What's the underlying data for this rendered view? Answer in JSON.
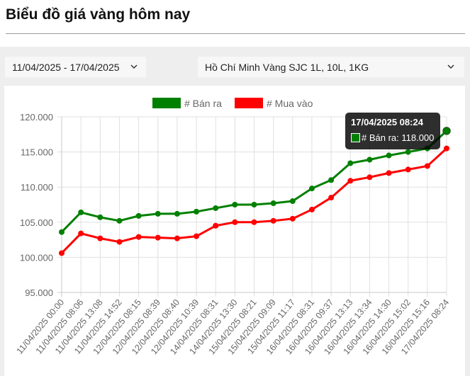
{
  "page": {
    "title": "Biểu đồ giá vàng hôm nay"
  },
  "filters": {
    "date_range": "11/04/2025 - 17/04/2025",
    "location": "Hồ Chí Minh Vàng SJC 1L, 10L, 1KG"
  },
  "icons": {
    "date_dropdown": "chevron-down-icon",
    "location_dropdown": "chevron-down-icon"
  },
  "tooltip": {
    "title": "17/04/2025 08:24",
    "series_label": "# Bán ra",
    "value_text": "118.000",
    "line": "# Bán ra: 118.000"
  },
  "chart_data": {
    "type": "line",
    "title": "",
    "xlabel": "",
    "ylabel": "",
    "ylim": [
      95000,
      120000
    ],
    "y_ticks": [
      95000,
      100000,
      105000,
      110000,
      115000,
      120000
    ],
    "y_tick_labels": [
      "95.000",
      "100.000",
      "105.000",
      "110.000",
      "115.000",
      "120.000"
    ],
    "grid": true,
    "legend_position": "top",
    "categories": [
      "11/04/2025 00:00",
      "11/04/2025 08:06",
      "11/04/2025 13:08",
      "11/04/2025 14:52",
      "12/04/2025 08:15",
      "12/04/2025 08:39",
      "12/04/2025 08:40",
      "12/04/2025 10:39",
      "14/04/2025 08:31",
      "14/04/2025 13:30",
      "15/04/2025 08:21",
      "15/04/2025 09:09",
      "15/04/2025 11:17",
      "16/04/2025 08:31",
      "16/04/2025 09:37",
      "16/04/2025 13:13",
      "16/04/2025 13:34",
      "16/04/2025 14:30",
      "16/04/2025 15:02",
      "16/04/2025 15:16",
      "17/04/2025 08:24"
    ],
    "series": [
      {
        "name": "# Bán ra",
        "color": "#008000",
        "values": [
          103600,
          106400,
          105700,
          105200,
          105900,
          106200,
          106200,
          106500,
          107000,
          107500,
          107500,
          107700,
          108000,
          109800,
          111000,
          113400,
          113900,
          114500,
          115000,
          115500,
          118000
        ]
      },
      {
        "name": "# Mua vào",
        "color": "#ff0000",
        "values": [
          100600,
          103400,
          102700,
          102200,
          102900,
          102800,
          102700,
          103000,
          104500,
          105000,
          105000,
          105200,
          105500,
          106800,
          108500,
          110900,
          111400,
          112000,
          112500,
          113000,
          115500
        ]
      }
    ]
  }
}
